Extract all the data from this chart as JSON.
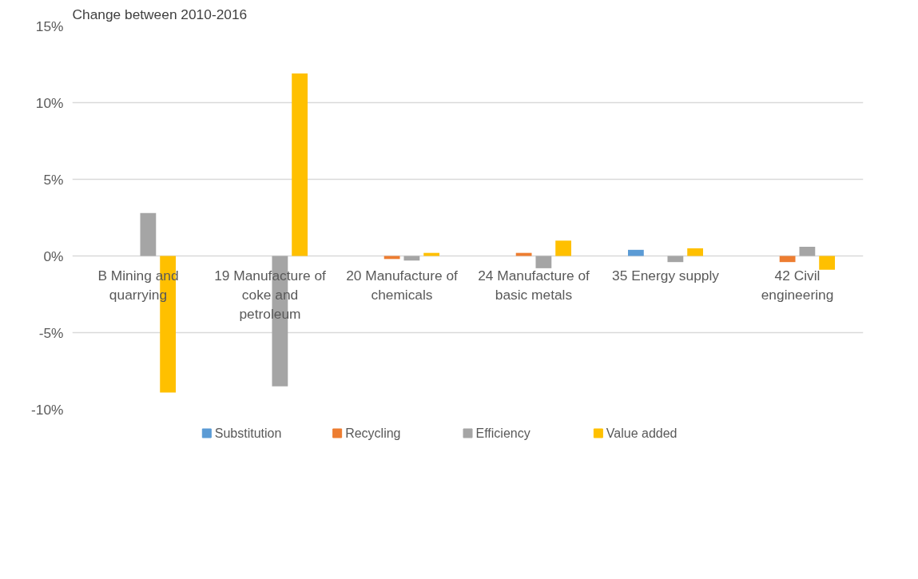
{
  "chart_data": {
    "type": "bar",
    "ylabel": "Change between 2010-2016",
    "categories": [
      "B Mining and quarrying",
      "19 Manufacture of coke and petroleum",
      "20 Manufacture of chemicals",
      "24 Manufacture of basic metals",
      "35 Energy supply",
      "42 Civil engineering"
    ],
    "series": [
      {
        "name": "Substitution",
        "color": "#5b9bd5",
        "values": [
          0,
          0,
          0,
          0,
          0.4,
          0
        ]
      },
      {
        "name": "Recycling",
        "color": "#ed7d31",
        "values": [
          0,
          0,
          -0.2,
          0.2,
          0,
          -0.4
        ]
      },
      {
        "name": "Efficiency",
        "color": "#a5a5a5",
        "values": [
          2.8,
          -8.5,
          -0.3,
          -0.8,
          -0.4,
          0.6
        ]
      },
      {
        "name": "Value added",
        "color": "#ffc000",
        "values": [
          -8.9,
          11.9,
          0.2,
          1.0,
          0.5,
          -0.9
        ]
      }
    ],
    "ylim": [
      -10,
      15
    ],
    "yticks": [
      {
        "value": -10,
        "label": "-10%"
      },
      {
        "value": -5,
        "label": "-5%"
      },
      {
        "value": 0,
        "label": "0%"
      },
      {
        "value": 5,
        "label": "5%"
      },
      {
        "value": 10,
        "label": "10%"
      },
      {
        "value": 15,
        "label": "15%"
      }
    ],
    "grid": "y",
    "legend": "bottom"
  }
}
